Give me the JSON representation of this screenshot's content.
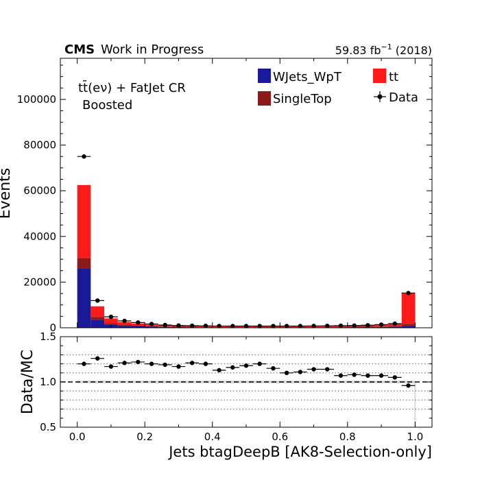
{
  "header": {
    "experiment": "CMS",
    "status": "Work in Progress",
    "lumi_value": "59.83 fb",
    "lumi_exp": "−1",
    "lumi_year": " (2018)"
  },
  "region": {
    "line1": "tt̄(eν) + FatJet CR",
    "line2": "Boosted"
  },
  "legend": {
    "entries": [
      {
        "label": "WJets_WpT",
        "color": "#1a1a99"
      },
      {
        "label": "SingleTop",
        "color": "#8b1a1a"
      },
      {
        "label": "tt",
        "color": "#ff1a1a"
      },
      {
        "label": "Data",
        "marker": "errorbar-point"
      }
    ]
  },
  "chart_data": [
    {
      "type": "bar",
      "subtype": "stacked-histogram",
      "bin_edges": [
        0.0,
        0.04,
        0.08,
        0.12,
        0.16,
        0.2,
        0.24,
        0.28,
        0.32,
        0.36,
        0.4,
        0.44,
        0.48,
        0.52,
        0.56,
        0.6,
        0.64,
        0.68,
        0.72,
        0.76,
        0.8,
        0.84,
        0.88,
        0.92,
        0.96,
        1.0
      ],
      "series": [
        {
          "name": "WJets_WpT",
          "color": "#1a1a99",
          "values": [
            26000,
            3500,
            1400,
            800,
            600,
            450,
            350,
            300,
            280,
            250,
            230,
            220,
            210,
            210,
            210,
            210,
            210,
            220,
            230,
            250,
            280,
            300,
            350,
            420,
            800
          ]
        },
        {
          "name": "SingleTop",
          "color": "#8b1a1a",
          "values": [
            4500,
            1200,
            600,
            400,
            300,
            220,
            180,
            150,
            140,
            130,
            120,
            120,
            115,
            115,
            115,
            115,
            120,
            120,
            125,
            130,
            140,
            150,
            170,
            200,
            900
          ]
        },
        {
          "name": "tt",
          "color": "#ff1a1a",
          "values": [
            32000,
            4700,
            2100,
            1300,
            1000,
            700,
            550,
            450,
            400,
            370,
            350,
            330,
            320,
            320,
            320,
            320,
            340,
            350,
            380,
            400,
            450,
            550,
            700,
            1000,
            13400
          ]
        }
      ],
      "data": {
        "name": "Data",
        "values": [
          75000,
          11900,
          4800,
          3000,
          2300,
          1650,
          1200,
          1000,
          900,
          850,
          770,
          760,
          750,
          750,
          750,
          750,
          760,
          800,
          840,
          900,
          970,
          1120,
          1380,
          1800,
          15200
        ]
      },
      "ylabel": "Events",
      "xlim": [
        -0.05,
        1.05
      ],
      "ylim": [
        0,
        118000
      ],
      "yticks": [
        0,
        20000,
        40000,
        60000,
        80000,
        100000
      ],
      "ytick_labels": [
        "0",
        "20000",
        "40000",
        "60000",
        "80000",
        "100000"
      ]
    },
    {
      "type": "scatter",
      "subtype": "ratio",
      "x": [
        0.02,
        0.06,
        0.1,
        0.14,
        0.18,
        0.22,
        0.26,
        0.3,
        0.34,
        0.38,
        0.42,
        0.46,
        0.5,
        0.54,
        0.58,
        0.62,
        0.66,
        0.7,
        0.74,
        0.78,
        0.82,
        0.86,
        0.9,
        0.94,
        0.98
      ],
      "y": [
        1.2,
        1.26,
        1.17,
        1.21,
        1.22,
        1.2,
        1.19,
        1.17,
        1.21,
        1.2,
        1.13,
        1.16,
        1.18,
        1.2,
        1.15,
        1.1,
        1.11,
        1.14,
        1.14,
        1.07,
        1.08,
        1.07,
        1.07,
        1.05,
        0.96
      ],
      "xlabel": "Jets btagDeepB [AK8-Selection-only]",
      "ylabel": "Data/MC",
      "xlim": [
        -0.05,
        1.05
      ],
      "ylim": [
        0.5,
        1.5
      ],
      "xticks": [
        0.0,
        0.2,
        0.4,
        0.6,
        0.8,
        1.0
      ],
      "xtick_labels": [
        "0.0",
        "0.2",
        "0.4",
        "0.6",
        "0.8",
        "1.0"
      ],
      "yticks": [
        0.5,
        1.0,
        1.5
      ],
      "ytick_labels": [
        "0.5",
        "1.0",
        "1.5"
      ],
      "reference_line": 1.0,
      "dotted_gridlines": [
        0.7,
        0.8,
        0.9,
        1.1,
        1.2,
        1.3
      ]
    }
  ]
}
